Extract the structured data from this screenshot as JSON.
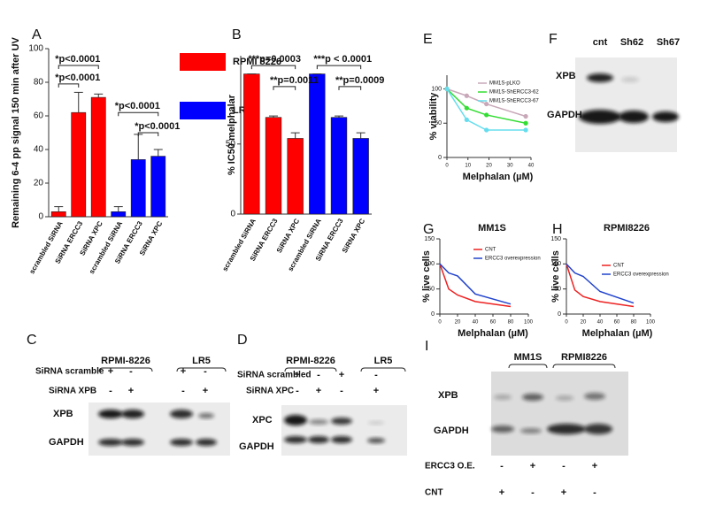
{
  "chart_data": [
    {
      "panel": "A",
      "type": "bar",
      "ylabel": "Remaining 6-4 pp signal 150 min after UV",
      "categories": [
        "scrambled SiRNA",
        "SiRNA ERCC3",
        "SiRNA XPC",
        "scrambled SiRNA",
        "SiRNA ERCC3",
        "SiRNA XPC"
      ],
      "series": [
        {
          "name": "RPMI 8226",
          "color": "#ff0000",
          "values": [
            3,
            62,
            71,
            null,
            null,
            null
          ],
          "errors": [
            3,
            12,
            2,
            null,
            null,
            null
          ]
        },
        {
          "name": "LR5",
          "color": "#0000ff",
          "values": [
            null,
            null,
            null,
            3,
            34,
            36
          ],
          "errors": [
            null,
            null,
            null,
            3,
            15,
            4
          ]
        }
      ],
      "ylim": [
        0,
        100
      ],
      "yticks": [
        0,
        20,
        40,
        60,
        80,
        100
      ],
      "annotations": [
        "*p<0.0001",
        "*p<0.0001",
        "*p<0.0001",
        "*p<0.0001"
      ]
    },
    {
      "panel": "B",
      "type": "bar",
      "ylabel": "% IC50 melphalar",
      "categories": [
        "scrambled SiRNA",
        "SiRNA ERCC3",
        "SiRNA XPC",
        "scrambled SiRNA",
        "SiRNA ERCC3",
        "SiRNA XPC"
      ],
      "series": [
        {
          "color": "#ff0000",
          "values": [
            100,
            69,
            54,
            null,
            null,
            null
          ],
          "errors": [
            0,
            1,
            4,
            null,
            null,
            null
          ]
        },
        {
          "color": "#0000ff",
          "values": [
            null,
            null,
            null,
            100,
            69,
            54
          ],
          "errors": [
            null,
            null,
            null,
            0,
            1,
            4
          ]
        }
      ],
      "ylim": [
        0,
        113
      ],
      "yticks": [
        0,
        50
      ],
      "annotations": [
        "***p=0.0003",
        "**p=0.0011",
        "***p < 0.0001",
        "**p=0.0009"
      ]
    },
    {
      "panel": "E",
      "type": "line",
      "ylabel": "% viability",
      "xlabel": "Melphalan (µM)",
      "markers": true,
      "x": [
        0,
        9.4,
        18.8,
        37.5
      ],
      "series": [
        {
          "name": "MM1S-pLKO",
          "color": "#c8a8b8",
          "values": [
            100,
            90,
            78,
            60
          ]
        },
        {
          "name": "MM1S-ShERCC3-62",
          "color": "#33dd33",
          "values": [
            100,
            72,
            62,
            50
          ]
        },
        {
          "name": "MM1S-ShERCC3-67",
          "color": "#66ddee",
          "values": [
            100,
            55,
            40,
            40
          ]
        }
      ],
      "xlim": [
        0,
        40
      ],
      "xticks": [
        0,
        10,
        20,
        30,
        40
      ],
      "ylim": [
        0,
        120
      ],
      "yticks": [
        0,
        50,
        100
      ]
    },
    {
      "panel": "G",
      "type": "line",
      "title": "MM1S",
      "ylabel": "% live cells",
      "xlabel": "Melphalan (µM)",
      "markers": false,
      "x": [
        0,
        10,
        20,
        40,
        80
      ],
      "series": [
        {
          "name": "CNT",
          "color": "#ee2222",
          "values": [
            100,
            50,
            38,
            25,
            15
          ]
        },
        {
          "name": "ERCC3 overexpression",
          "color": "#2244cc",
          "values": [
            100,
            82,
            76,
            40,
            20
          ]
        }
      ],
      "xlim": [
        0,
        100
      ],
      "xticks": [
        0,
        20,
        40,
        60,
        80,
        100
      ],
      "ylim": [
        0,
        150
      ],
      "yticks": [
        0,
        50,
        100,
        150
      ]
    },
    {
      "panel": "H",
      "type": "line",
      "title": "RPMI8226",
      "ylabel": "% live cells",
      "xlabel": "Melphalan (µM)",
      "markers": false,
      "x": [
        0,
        10,
        20,
        40,
        80
      ],
      "series": [
        {
          "name": "CNT",
          "color": "#ee2222",
          "values": [
            100,
            48,
            35,
            25,
            15
          ]
        },
        {
          "name": "ERCC3 overexpression",
          "color": "#2244cc",
          "values": [
            100,
            82,
            75,
            45,
            22
          ]
        }
      ],
      "xlim": [
        0,
        100
      ],
      "xticks": [
        0,
        20,
        40,
        60,
        80,
        100
      ],
      "ylim": [
        0,
        150
      ],
      "yticks": [
        0,
        50,
        100,
        150
      ]
    }
  ],
  "blots": [
    {
      "panel": "C",
      "groups": [
        "RPMI-8226",
        "LR5"
      ],
      "rows": [
        {
          "label": "SiRNA scramble",
          "signs": [
            "+",
            "-",
            "+",
            "-"
          ]
        },
        {
          "label": "SiRNA XPB",
          "signs": [
            "-",
            "+",
            "-",
            "+"
          ]
        }
      ],
      "proteins": [
        "XPB",
        "GAPDH"
      ]
    },
    {
      "panel": "D",
      "groups": [
        "RPMI-8226",
        "LR5"
      ],
      "rows": [
        {
          "label": "SiRNA scrambled",
          "signs": [
            "+",
            "-",
            "+",
            "-"
          ]
        },
        {
          "label": "SiRNA XPC",
          "signs": [
            "-",
            "+",
            "-",
            "+"
          ]
        }
      ],
      "proteins": [
        "XPC",
        "GAPDH"
      ]
    },
    {
      "panel": "F",
      "groups": [
        "cnt",
        "Sh62",
        "Sh67"
      ],
      "proteins": [
        "XPB",
        "GAPDH"
      ]
    },
    {
      "panel": "I",
      "groups": [
        "MM1S",
        "RPMI8226"
      ],
      "rows": [
        {
          "label": "ERCC3 O.E.",
          "signs": [
            "-",
            "+",
            "-",
            "+"
          ]
        },
        {
          "label": "CNT",
          "signs": [
            "+",
            "-",
            "+",
            "-"
          ]
        }
      ],
      "proteins": [
        "XPB",
        "GAPDH"
      ]
    }
  ]
}
